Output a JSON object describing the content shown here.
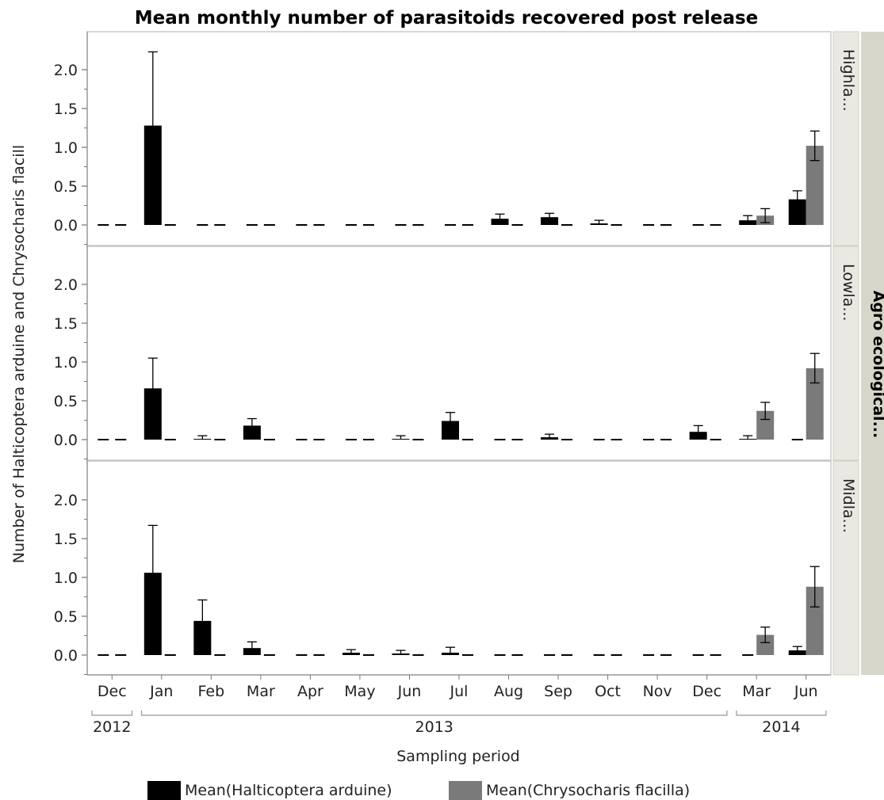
{
  "chart_data": {
    "type": "bar",
    "title": "Mean monthly number of parasitoids recovered post release",
    "xlabel": "Sampling period",
    "ylabel": "Number of Halticoptera arduine and Chrysocharis flacill",
    "group_label": "Agro ecological...",
    "categories": [
      "Dec",
      "Jan",
      "Feb",
      "Mar",
      "Apr",
      "May",
      "Jun",
      "Jul",
      "Aug",
      "Sep",
      "Oct",
      "Nov",
      "Dec",
      "Mar",
      "Jun"
    ],
    "years": [
      {
        "label": "2012",
        "start": 0,
        "end": 0
      },
      {
        "label": "2013",
        "start": 1,
        "end": 12
      },
      {
        "label": "2014",
        "start": 13,
        "end": 14
      }
    ],
    "ylim": [
      -0.2,
      2.5
    ],
    "yticks": [
      "0.0",
      "0.5",
      "1.0",
      "1.5",
      "2.0"
    ],
    "legend": [
      {
        "label": "Mean(Halticoptera arduine)",
        "color": "#000000"
      },
      {
        "label": "Mean(Chrysocharis flacilla)",
        "color": "#7a7a7a"
      }
    ],
    "panels": [
      {
        "name": "Highla...",
        "series": [
          {
            "name": "Mean(Halticoptera arduine)",
            "values": [
              0,
              1.28,
              0,
              0,
              0,
              0,
              0,
              0,
              0.08,
              0.1,
              0.02,
              0,
              0,
              0.06,
              0.33
            ],
            "error": [
              0,
              0.95,
              0,
              0,
              0,
              0,
              0,
              0,
              0.06,
              0.05,
              0.04,
              0,
              0,
              0.06,
              0.11
            ]
          },
          {
            "name": "Mean(Chrysocharis flacilla)",
            "values": [
              0,
              0,
              0,
              0,
              0,
              0,
              0,
              0,
              0,
              0,
              0,
              0,
              0,
              0.12,
              1.02
            ],
            "error": [
              0,
              0,
              0,
              0,
              0,
              0,
              0,
              0,
              0,
              0,
              0,
              0,
              0,
              0.09,
              0.19
            ]
          }
        ]
      },
      {
        "name": "Lowla...",
        "series": [
          {
            "name": "Mean(Halticoptera arduine)",
            "values": [
              0,
              0.66,
              0.01,
              0.18,
              0,
              0,
              0.01,
              0.24,
              0,
              0.03,
              0,
              0,
              0.1,
              0.01,
              0
            ],
            "error": [
              0,
              0.39,
              0.04,
              0.09,
              0,
              0,
              0.04,
              0.11,
              0,
              0.04,
              0,
              0,
              0.08,
              0.04,
              0
            ]
          },
          {
            "name": "Mean(Chrysocharis flacilla)",
            "values": [
              0,
              0,
              0,
              0,
              0,
              0,
              0,
              0,
              0,
              0,
              0,
              0,
              0,
              0.37,
              0.92
            ],
            "error": [
              0,
              0,
              0,
              0,
              0,
              0,
              0,
              0,
              0,
              0,
              0,
              0,
              0,
              0.11,
              0.19
            ]
          }
        ]
      },
      {
        "name": "Midla...",
        "series": [
          {
            "name": "Mean(Halticoptera arduine)",
            "values": [
              0,
              1.06,
              0.44,
              0.09,
              0,
              0.03,
              0.02,
              0.03,
              0,
              0,
              0,
              0,
              0,
              0,
              0.06
            ],
            "error": [
              0,
              0.61,
              0.27,
              0.08,
              0,
              0.04,
              0.04,
              0.07,
              0,
              0,
              0,
              0,
              0,
              0,
              0.05
            ]
          },
          {
            "name": "Mean(Chrysocharis flacilla)",
            "values": [
              0,
              0,
              0,
              0,
              0,
              0,
              0,
              0,
              0,
              0,
              0,
              0,
              0,
              0.26,
              0.88
            ],
            "error": [
              0,
              0,
              0,
              0,
              0,
              0,
              0,
              0,
              0,
              0,
              0,
              0,
              0,
              0.1,
              0.26
            ]
          }
        ]
      }
    ]
  }
}
